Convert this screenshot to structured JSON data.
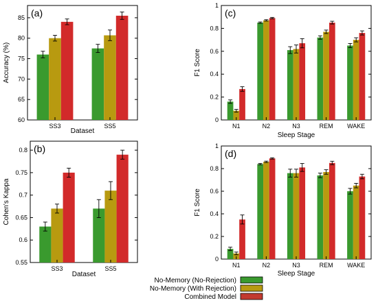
{
  "colors": {
    "no_rejection": "#3a9a2e",
    "with_rejection": "#b89a10",
    "combined": "#d22a2a"
  },
  "legend": {
    "entries": [
      {
        "label": "No-Memory (No-Rejection)",
        "color": "#3a9a2e"
      },
      {
        "label": "No-Memory (With Rejection)",
        "color": "#b89a10"
      },
      {
        "label": "Combined Model",
        "color": "#c23a30"
      }
    ]
  },
  "chart_data": [
    {
      "id": "a",
      "panel_label": "(a)",
      "type": "bar",
      "categories": [
        "SS3",
        "SS5"
      ],
      "xlabel": "Dataset",
      "ylabel": "Accuracy (%)",
      "ylim": [
        60,
        88
      ],
      "yticks": [
        60,
        65,
        70,
        75,
        80,
        85
      ],
      "series": [
        {
          "values": [
            76.0,
            77.5
          ],
          "errors": [
            0.8,
            1.0
          ],
          "color": "#3a9a2e"
        },
        {
          "values": [
            80.0,
            80.7
          ],
          "errors": [
            0.7,
            1.3
          ],
          "color": "#b89a10"
        },
        {
          "values": [
            84.0,
            85.5
          ],
          "errors": [
            0.7,
            0.9
          ],
          "color": "#d22a2a"
        }
      ]
    },
    {
      "id": "b",
      "panel_label": "(b)",
      "type": "bar",
      "categories": [
        "SS3",
        "SS5"
      ],
      "xlabel": "Dataset",
      "ylabel": "Cohen's Kappa",
      "ylim": [
        0.55,
        0.82
      ],
      "yticks": [
        0.55,
        0.6,
        0.65,
        0.7,
        0.75,
        0.8
      ],
      "ytick_labels": [
        "0.55",
        "0.6",
        "0.65",
        "0.7",
        "0.75",
        "0.8"
      ],
      "series": [
        {
          "values": [
            0.63,
            0.67
          ],
          "errors": [
            0.01,
            0.02
          ],
          "color": "#3a9a2e"
        },
        {
          "values": [
            0.67,
            0.71
          ],
          "errors": [
            0.01,
            0.02
          ],
          "color": "#b89a10"
        },
        {
          "values": [
            0.75,
            0.79
          ],
          "errors": [
            0.01,
            0.01
          ],
          "color": "#d22a2a"
        }
      ]
    },
    {
      "id": "c",
      "panel_label": "(c)",
      "type": "bar",
      "categories": [
        "N1",
        "N2",
        "N3",
        "REM",
        "WAKE"
      ],
      "xlabel": "Sleep Stage",
      "ylabel": "F1 Score",
      "ylim": [
        0,
        1
      ],
      "yticks": [
        0,
        0.2,
        0.4,
        0.6,
        0.8,
        1
      ],
      "ytick_labels": [
        "0",
        "0.2",
        "0.4",
        "0.6",
        "0.8",
        "1"
      ],
      "series": [
        {
          "values": [
            0.16,
            0.85,
            0.61,
            0.72,
            0.65
          ],
          "errors": [
            0.015,
            0.006,
            0.03,
            0.015,
            0.018
          ],
          "color": "#3a9a2e"
        },
        {
          "values": [
            0.08,
            0.87,
            0.62,
            0.77,
            0.7
          ],
          "errors": [
            0.012,
            0.006,
            0.035,
            0.015,
            0.018
          ],
          "color": "#b89a10"
        },
        {
          "values": [
            0.27,
            0.89,
            0.67,
            0.85,
            0.76
          ],
          "errors": [
            0.02,
            0.006,
            0.04,
            0.012,
            0.018
          ],
          "color": "#d22a2a"
        }
      ]
    },
    {
      "id": "d",
      "panel_label": "(d)",
      "type": "bar",
      "categories": [
        "N1",
        "N2",
        "N3",
        "REM",
        "WAKE"
      ],
      "xlabel": "Sleep Stage",
      "ylabel": "F1 Score",
      "ylim": [
        0,
        1
      ],
      "yticks": [
        0,
        0.2,
        0.4,
        0.6,
        0.8,
        1
      ],
      "ytick_labels": [
        "0",
        "0.2",
        "0.4",
        "0.6",
        "0.8",
        "1"
      ],
      "series": [
        {
          "values": [
            0.09,
            0.84,
            0.76,
            0.74,
            0.6
          ],
          "errors": [
            0.015,
            0.006,
            0.035,
            0.02,
            0.025
          ],
          "color": "#3a9a2e"
        },
        {
          "values": [
            0.05,
            0.86,
            0.76,
            0.77,
            0.65
          ],
          "errors": [
            0.012,
            0.006,
            0.035,
            0.02,
            0.02
          ],
          "color": "#b89a10"
        },
        {
          "values": [
            0.35,
            0.89,
            0.81,
            0.85,
            0.73
          ],
          "errors": [
            0.04,
            0.006,
            0.035,
            0.015,
            0.02
          ],
          "color": "#d22a2a"
        }
      ]
    }
  ]
}
